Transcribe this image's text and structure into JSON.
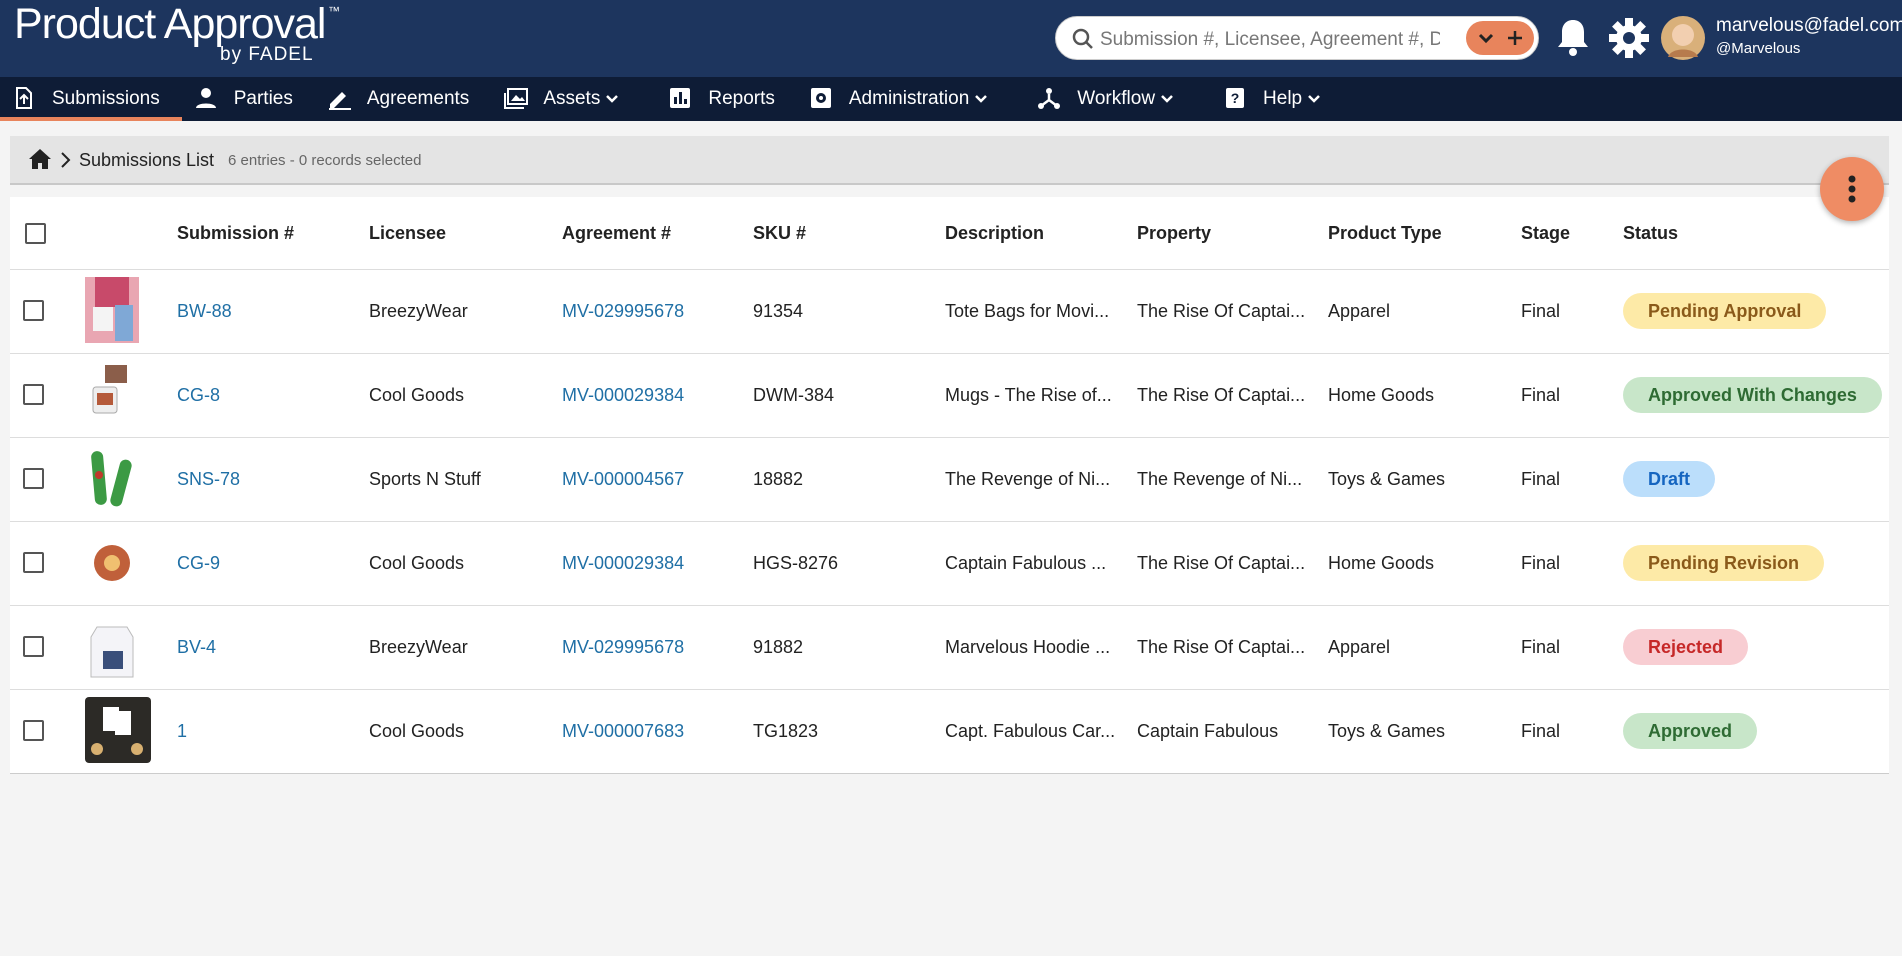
{
  "header": {
    "logo_title": "Product Approval",
    "logo_tm": "™",
    "logo_subtitle": "by FADEL",
    "search_placeholder": "Submission #, Licensee, Agreement #, Descr",
    "user_email": "marvelous@fadel.com",
    "user_handle": "@Marvelous"
  },
  "nav": [
    {
      "label": "Submissions",
      "has_menu": false,
      "active": true
    },
    {
      "label": "Parties",
      "has_menu": false,
      "active": false
    },
    {
      "label": "Agreements",
      "has_menu": false,
      "active": false
    },
    {
      "label": "Assets",
      "has_menu": true,
      "active": false
    },
    {
      "label": "Reports",
      "has_menu": false,
      "active": false
    },
    {
      "label": "Administration",
      "has_menu": true,
      "active": false
    },
    {
      "label": "Workflow",
      "has_menu": true,
      "active": false
    },
    {
      "label": "Help",
      "has_menu": true,
      "active": false
    }
  ],
  "breadcrumb": {
    "title": "Submissions List",
    "summary": "6 entries - 0 records selected"
  },
  "table": {
    "columns": [
      "Submission #",
      "Licensee",
      "Agreement #",
      "SKU #",
      "Description",
      "Property",
      "Product Type",
      "Stage",
      "Status"
    ],
    "rows": [
      [
        "BW-88",
        "BreezyWear",
        "MV-029995678",
        "91354",
        "Tote Bags for Movi...",
        "The Rise Of Captai...",
        "Apparel",
        "Final",
        "Pending Approval"
      ],
      [
        "CG-8",
        "Cool Goods",
        "MV-000029384",
        "DWM-384",
        "Mugs - The Rise of...",
        "The Rise Of Captai...",
        "Home Goods",
        "Final",
        "Approved With Changes"
      ],
      [
        "SNS-78",
        "Sports N Stuff",
        "MV-000004567",
        "18882",
        "The Revenge of Ni...",
        "The Revenge of Ni...",
        "Toys & Games",
        "Final",
        "Draft"
      ],
      [
        "CG-9",
        "Cool Goods",
        "MV-000029384",
        "HGS-8276",
        "Captain Fabulous ...",
        "The Rise Of Captai...",
        "Home Goods",
        "Final",
        "Pending Revision"
      ],
      [
        "BV-4",
        "BreezyWear",
        "MV-029995678",
        "91882",
        "Marvelous Hoodie ...",
        "The Rise Of Captai...",
        "Apparel",
        "Final",
        "Rejected"
      ],
      [
        "1",
        "Cool Goods",
        "MV-000007683",
        "TG1823",
        "Capt. Fabulous Car...",
        "Captain Fabulous",
        "Toys & Games",
        "Final",
        "Approved"
      ]
    ]
  }
}
